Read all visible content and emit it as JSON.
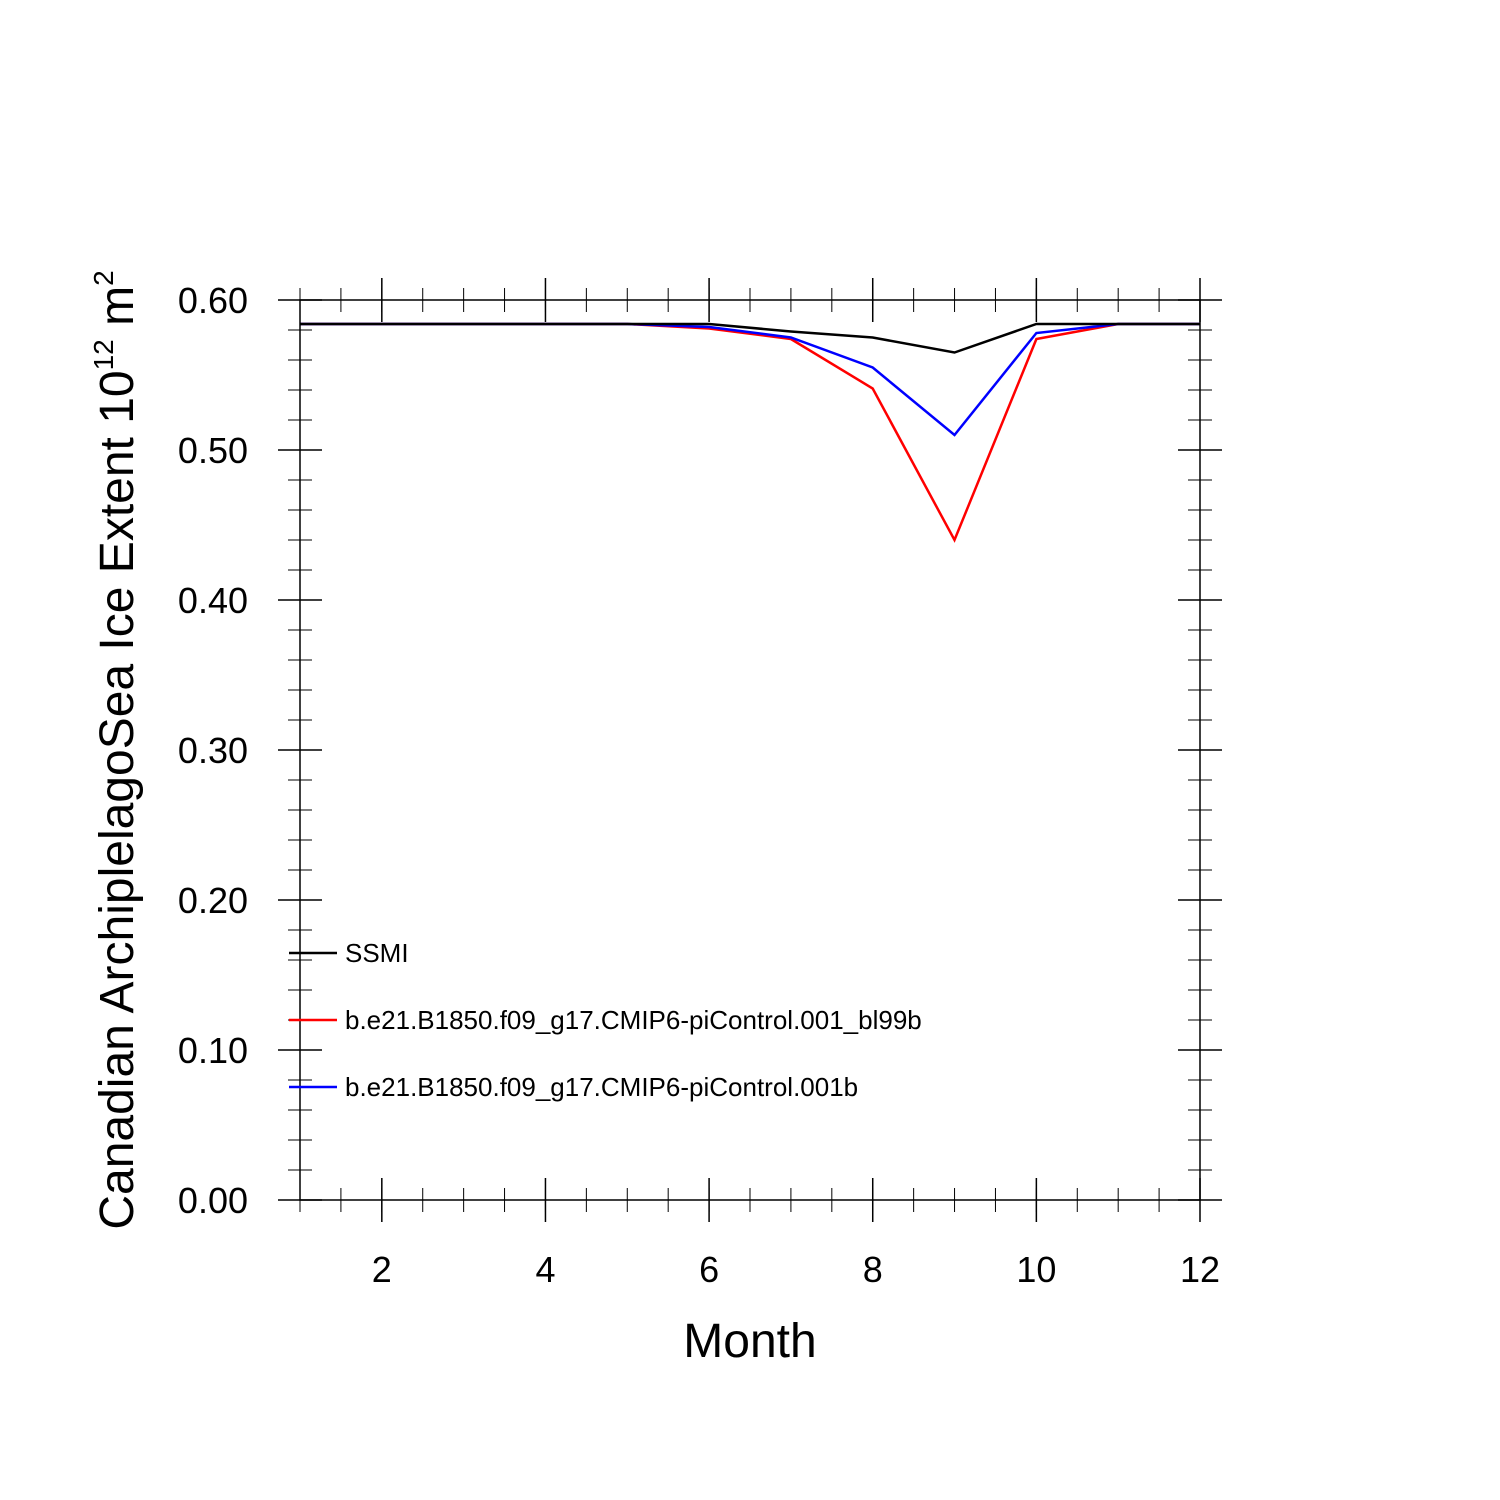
{
  "chart_data": {
    "type": "line",
    "xlabel": "Month",
    "ylabel": "Canadian ArchiplelagoSea Ice Extent 10",
    "ylabel_sup1": "12",
    "ylabel_unit": " m",
    "ylabel_sup2": "2",
    "xlim": [
      1,
      12
    ],
    "ylim": [
      0,
      0.6
    ],
    "x_ticks": [
      2,
      4,
      6,
      8,
      10,
      12
    ],
    "y_ticks": [
      0.0,
      0.1,
      0.2,
      0.3,
      0.4,
      0.5,
      0.6
    ],
    "y_tick_labels": [
      "0.00",
      "0.10",
      "0.20",
      "0.30",
      "0.40",
      "0.50",
      "0.60"
    ],
    "grid": false,
    "legend_position": "bottom-left",
    "x": [
      1,
      2,
      3,
      4,
      5,
      6,
      7,
      8,
      9,
      10,
      11,
      12
    ],
    "series": [
      {
        "name": "SSMI",
        "color": "#000000",
        "values": [
          0.584,
          0.584,
          0.584,
          0.584,
          0.584,
          0.584,
          0.579,
          0.575,
          0.565,
          0.584,
          0.584,
          0.584
        ]
      },
      {
        "name": "b.e21.B1850.f09_g17.CMIP6-piControl.001_bl99b",
        "color": "#ff0000",
        "values": [
          0.584,
          0.584,
          0.584,
          0.584,
          0.584,
          0.581,
          0.574,
          0.541,
          0.44,
          0.574,
          0.584,
          0.584
        ]
      },
      {
        "name": "b.e21.B1850.f09_g17.CMIP6-piControl.001b",
        "color": "#0000ff",
        "values": [
          0.584,
          0.584,
          0.584,
          0.584,
          0.584,
          0.582,
          0.575,
          0.555,
          0.51,
          0.578,
          0.584,
          0.584
        ]
      }
    ]
  }
}
